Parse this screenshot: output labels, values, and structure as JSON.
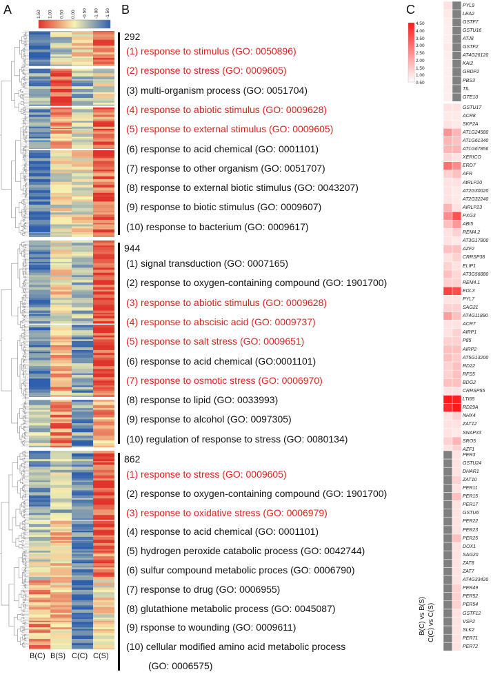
{
  "panels": {
    "a": "A",
    "b": "B",
    "c": "C"
  },
  "colorbar_a": {
    "ticks": [
      "1.50",
      "1.00",
      "0.50",
      "0.00",
      "-0.50",
      "-1.00",
      "-1.50"
    ],
    "colors": [
      "#e0332c",
      "#f7f2b2",
      "#2f5fad"
    ]
  },
  "colorbar_c": {
    "ticks": [
      "4.50",
      "4.00",
      "3.50",
      "3.00",
      "2.50",
      "2.00",
      "1.50",
      "1.00",
      "0.50"
    ],
    "colors": [
      "#ffffff",
      "#ff1a1a"
    ]
  },
  "heatmap_a_columns": [
    "B(C)",
    "B(S)",
    "C(C)",
    "C(S)"
  ],
  "heatmap_c_columns": [
    "B(C) vs B(S)",
    "C(C) vs C(S)"
  ],
  "clusters": [
    {
      "count": "292",
      "terms": [
        {
          "text": "(1) response to stimulus (GO: 0050896)",
          "highlight": true
        },
        {
          "text": "(2) response to stress (GO: 0009605)",
          "highlight": true
        },
        {
          "text": "(3) multi-organism process (GO: 0051704)",
          "highlight": false
        },
        {
          "text": "(4) response to abiotic stimulus (GO: 0009628)",
          "highlight": true
        },
        {
          "text": "(5) response to external stimulus  (GO: 0009605)",
          "highlight": true
        },
        {
          "text": "(6) response to acid chemical (GO: 0001101)",
          "highlight": false
        },
        {
          "text": "(7) response to other organism (GO: 0051707)",
          "highlight": false
        },
        {
          "text": "(8) response to external biotic stimulus (GO: 0043207)",
          "highlight": false
        },
        {
          "text": "(9) response to biotic stimulus (GO: 0009607)",
          "highlight": false
        },
        {
          "text": "(10) response to bacterium (GO: 0009617)",
          "highlight": false
        }
      ]
    },
    {
      "count": "944",
      "terms": [
        {
          "text": "(1) signal transduction (GO: 0007165)",
          "highlight": false
        },
        {
          "text": "(2) response to oxygen-containing compound (GO: 1901700)",
          "highlight": false
        },
        {
          "text": "(3) response to abiotic stimulus (GO: 0009628)",
          "highlight": true
        },
        {
          "text": "(4) response to abscisic acid (GO: 0009737)",
          "highlight": true
        },
        {
          "text": "(5) response to salt stress (GO: 0009651)",
          "highlight": true
        },
        {
          "text": "(6) response to acid chemical (GO:0001101)",
          "highlight": false
        },
        {
          "text": "(7) response to osmotic stress (GO: 0006970)",
          "highlight": true
        },
        {
          "text": "(8) response to lipid (GO: 0033993)",
          "highlight": false
        },
        {
          "text": "(9) response to alcohol (GO: 0097305)",
          "highlight": false
        },
        {
          "text": "(10) regulation of response to stress (GO: 0080134)",
          "highlight": false
        }
      ]
    },
    {
      "count": "862",
      "terms": [
        {
          "text": "(1) response to stress (GO: 0009605)",
          "highlight": true
        },
        {
          "text": "(2) response to oxygen-containing compound (GO: 1901700)",
          "highlight": false
        },
        {
          "text": "(3) response to oxidative stress (GO: 0006979)",
          "highlight": true
        },
        {
          "text": "(4) response to acid chemical (GO: 0001101)",
          "highlight": false
        },
        {
          "text": "(5) hydrogen peroxide catabolic process (GO: 0042744)",
          "highlight": false
        },
        {
          "text": "(6) sulfur compound metabolic proces (GO: 0006790)",
          "highlight": false
        },
        {
          "text": "(7) response to drug (GO: 0006955)",
          "highlight": false
        },
        {
          "text": "(8) glutathione metabolic process (GO: 0045087)",
          "highlight": false
        },
        {
          "text": "(9) rsponse to wounding (GO: 0009611)",
          "highlight": false
        },
        {
          "text": "(10) cellular modified amino acid metabolic process",
          "highlight": false
        },
        {
          "text": "(GO: 0006575)",
          "highlight": false
        }
      ]
    }
  ],
  "panel_c_groups": [
    {
      "genes": [
        {
          "name": "PYL9",
          "v1": 1.0,
          "v2": null
        },
        {
          "name": "LEA2",
          "v1": 0.9,
          "v2": null
        },
        {
          "name": "GSTF7",
          "v1": 0.8,
          "v2": null
        },
        {
          "name": "GSTU16",
          "v1": 0.8,
          "v2": null
        },
        {
          "name": "ATJ8",
          "v1": 0.8,
          "v2": null
        },
        {
          "name": "GSTF2",
          "v1": 0.9,
          "v2": null
        },
        {
          "name": "AT4G26120",
          "v1": 0.8,
          "v2": null
        },
        {
          "name": "KAI2",
          "v1": 0.8,
          "v2": null
        },
        {
          "name": "GRDP2",
          "v1": 0.8,
          "v2": null
        },
        {
          "name": "PBS3",
          "v1": 0.8,
          "v2": null
        },
        {
          "name": "TIL",
          "v1": 0.8,
          "v2": null
        },
        {
          "name": "GTE10",
          "v1": 0.8,
          "v2": null
        }
      ]
    },
    {
      "genes": [
        {
          "name": "GSTU17",
          "v1": 1.0,
          "v2": 1.0
        },
        {
          "name": "ACR8",
          "v1": 0.9,
          "v2": 0.9
        },
        {
          "name": "SKP2A",
          "v1": 1.0,
          "v2": 0.9
        },
        {
          "name": "AT1G24580",
          "v1": 2.4,
          "v2": 1.8
        },
        {
          "name": "AT1G61340",
          "v1": 1.8,
          "v2": 1.6
        },
        {
          "name": "AT1G67856",
          "v1": 1.8,
          "v2": 1.8
        },
        {
          "name": "XERICO",
          "v1": 1.2,
          "v2": 1.0
        },
        {
          "name": "ERD7",
          "v1": 3.0,
          "v2": 2.5
        },
        {
          "name": "AFR",
          "v1": 1.3,
          "v2": 1.6
        },
        {
          "name": "AtRLP20",
          "v1": 1.0,
          "v2": 1.0
        },
        {
          "name": "AT2G30020",
          "v1": 1.0,
          "v2": 0.9
        },
        {
          "name": "AT2G32240",
          "v1": 1.0,
          "v2": 0.9
        },
        {
          "name": "AIRLP23",
          "v1": 1.8,
          "v2": 1.0
        },
        {
          "name": "PXG3",
          "v1": 2.5,
          "v2": 3.5
        },
        {
          "name": "ABI5",
          "v1": 1.6,
          "v2": 2.3
        },
        {
          "name": "REM4.2",
          "v1": 1.0,
          "v2": 1.3
        },
        {
          "name": "AT3G17800",
          "v1": 1.0,
          "v2": 0.9
        },
        {
          "name": "AZF2",
          "v1": 1.6,
          "v2": 1.6
        },
        {
          "name": "CRRSP38",
          "v1": 1.0,
          "v2": 1.3
        },
        {
          "name": "ELIP1",
          "v1": 1.3,
          "v2": 1.0
        },
        {
          "name": "AT3G56880",
          "v1": 1.6,
          "v2": 1.2
        },
        {
          "name": "REM4.1",
          "v1": 1.3,
          "v2": 1.3
        },
        {
          "name": "EDL3",
          "v1": 3.8,
          "v2": 3.6
        },
        {
          "name": "PYL7",
          "v1": 1.0,
          "v2": 1.0
        },
        {
          "name": "SAG21",
          "v1": 1.3,
          "v2": 1.3
        },
        {
          "name": "AT4G11890",
          "v1": 2.2,
          "v2": 1.6
        },
        {
          "name": "ACR7",
          "v1": 1.0,
          "v2": 1.0
        },
        {
          "name": "AIRP1",
          "v1": 1.0,
          "v2": 1.3
        },
        {
          "name": "P85",
          "v1": 1.3,
          "v2": 1.3
        },
        {
          "name": "AIRP2",
          "v1": 1.6,
          "v2": 1.6
        },
        {
          "name": "AT5G13200",
          "v1": 1.6,
          "v2": 1.4
        },
        {
          "name": "RD22",
          "v1": 1.3,
          "v2": 1.6
        },
        {
          "name": "RFS5",
          "v1": 1.3,
          "v2": 1.6
        },
        {
          "name": "BDG2",
          "v1": 1.6,
          "v2": 1.6
        },
        {
          "name": "CRRSP55",
          "v1": 1.0,
          "v2": 1.0
        },
        {
          "name": "LTI65",
          "v1": 4.5,
          "v2": 4.4
        },
        {
          "name": "RD29A",
          "v1": 4.2,
          "v2": 4.5
        },
        {
          "name": "NHX4",
          "v1": 1.0,
          "v2": 1.3
        },
        {
          "name": "ZAT12",
          "v1": 1.0,
          "v2": 1.0
        },
        {
          "name": "SNAP33",
          "v1": 1.0,
          "v2": 0.9
        },
        {
          "name": "SRO5",
          "v1": 1.3,
          "v2": 1.8
        },
        {
          "name": "AZF1",
          "v1": 1.0,
          "v2": 1.3
        }
      ]
    },
    {
      "genes": [
        {
          "name": "PER3",
          "v1": null,
          "v2": 1.0
        },
        {
          "name": "GSTU24",
          "v1": null,
          "v2": 1.0
        },
        {
          "name": "DHAR1",
          "v1": null,
          "v2": 1.0
        },
        {
          "name": "ZAT10",
          "v1": null,
          "v2": 1.3
        },
        {
          "name": "PER11",
          "v1": null,
          "v2": 1.0
        },
        {
          "name": "PER15",
          "v1": null,
          "v2": 1.6
        },
        {
          "name": "PER17",
          "v1": null,
          "v2": 1.0
        },
        {
          "name": "GSTU6",
          "v1": null,
          "v2": 1.0
        },
        {
          "name": "PER22",
          "v1": null,
          "v2": 1.0
        },
        {
          "name": "PER23",
          "v1": null,
          "v2": 1.0
        },
        {
          "name": "PER25",
          "v1": null,
          "v2": 1.6
        },
        {
          "name": "DOX1",
          "v1": null,
          "v2": 1.0
        },
        {
          "name": "SAG20",
          "v1": null,
          "v2": 1.0
        },
        {
          "name": "ZAT8",
          "v1": null,
          "v2": 1.0
        },
        {
          "name": "ZAT7",
          "v1": null,
          "v2": 1.0
        },
        {
          "name": "AT4G33420",
          "v1": null,
          "v2": 1.0
        },
        {
          "name": "PER49",
          "v1": null,
          "v2": 1.3
        },
        {
          "name": "PER52",
          "v1": null,
          "v2": 1.3
        },
        {
          "name": "PER54",
          "v1": null,
          "v2": 1.3
        },
        {
          "name": "GSTF12",
          "v1": null,
          "v2": 1.0
        },
        {
          "name": "VSP2",
          "v1": null,
          "v2": 1.0
        },
        {
          "name": "SLK2",
          "v1": null,
          "v2": 1.0
        },
        {
          "name": "PER71",
          "v1": null,
          "v2": 1.0
        },
        {
          "name": "PER72",
          "v1": null,
          "v2": 1.0
        }
      ]
    }
  ]
}
